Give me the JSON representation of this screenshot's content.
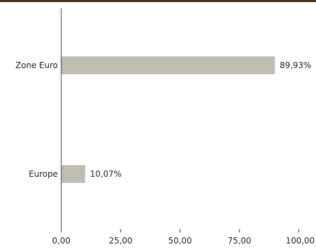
{
  "chart_data": {
    "type": "bar",
    "orientation": "horizontal",
    "title": "",
    "xlabel": "",
    "ylabel": "",
    "categories": [
      "Zone Euro",
      "Europe"
    ],
    "values": [
      89.93,
      10.07
    ],
    "value_labels": [
      "89,93%",
      "10,07%"
    ],
    "xlim": [
      0,
      100
    ],
    "x_ticks": [
      0,
      25,
      50,
      75,
      100
    ],
    "x_tick_labels": [
      "0,00",
      "25,00",
      "50,00",
      "75,00",
      "100,00"
    ],
    "grid": false,
    "legend": "none",
    "colors": {
      "bar": "#bfbdb0",
      "axis": "#333333",
      "text": "#222222",
      "top_rule": "#4a2a1a"
    }
  }
}
